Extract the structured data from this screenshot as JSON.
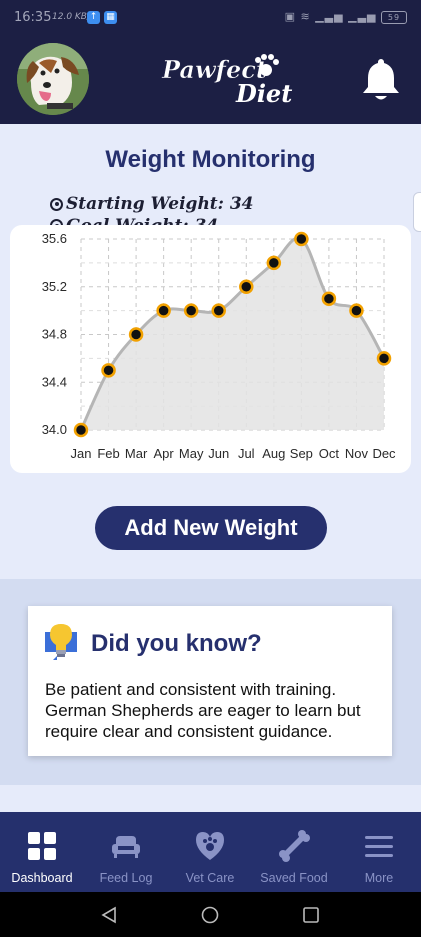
{
  "status_bar": {
    "time": "16:35",
    "network_speed": "12.0 KB/s",
    "battery": "59"
  },
  "header": {
    "logo_line1": "Pawfect",
    "logo_line2": "Diet",
    "avatar_icon": "dog-photo",
    "bell_icon": "notification-bell-icon"
  },
  "main": {
    "title": "Weight Monitoring",
    "starting_weight_label": "Starting Weight: 34",
    "goal_weight_label": "Goal Weight: 34",
    "add_button_label": "Add New Weight"
  },
  "chart_data": {
    "type": "line",
    "categories": [
      "Jan",
      "Feb",
      "Mar",
      "Apr",
      "May",
      "Jun",
      "Jul",
      "Aug",
      "Sep",
      "Oct",
      "Nov",
      "Dec"
    ],
    "values": [
      34.0,
      34.5,
      34.8,
      35.0,
      35.0,
      35.0,
      35.2,
      35.4,
      35.6,
      35.1,
      35.0,
      34.6
    ],
    "y_ticks": [
      "34.0",
      "34.4",
      "34.8",
      "35.2",
      "35.6"
    ],
    "ylim": [
      34.0,
      35.6
    ],
    "grid": true,
    "fill_area": true,
    "colors": {
      "line": "#b5b5b5",
      "fill": "#e3e3e3",
      "point": "#111111",
      "point_outline": "#f2a100"
    }
  },
  "tip": {
    "title": "Did you know?",
    "body": "Be patient and consistent with training. German Shepherds are eager to learn but require clear and consistent guidance.",
    "icon": "lightbulb-icon"
  },
  "bottom_nav": {
    "items": [
      {
        "label": "Dashboard",
        "icon": "dashboard-grid-icon",
        "active": true
      },
      {
        "label": "Feed Log",
        "icon": "dog-bed-icon",
        "active": false
      },
      {
        "label": "Vet Care",
        "icon": "heart-paw-icon",
        "active": false
      },
      {
        "label": "Saved Food",
        "icon": "bone-icon",
        "active": false
      },
      {
        "label": "More",
        "icon": "hamburger-menu-icon",
        "active": false
      }
    ]
  },
  "colors": {
    "navy": "#1c1f44",
    "accent": "#26306e",
    "background": "#e6ebfa"
  }
}
